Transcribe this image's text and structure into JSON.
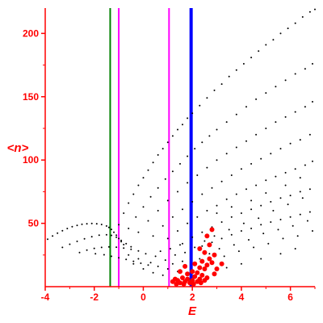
{
  "chart_data": {
    "type": "scatter",
    "title": "",
    "xlabel": "E",
    "ylabel": "<n>",
    "xlim": [
      -4,
      7
    ],
    "ylim": [
      0,
      220
    ],
    "x_ticks": [
      -4,
      -2,
      0,
      2,
      4,
      6
    ],
    "y_ticks": [
      50,
      100,
      150,
      200
    ],
    "grid": false,
    "legend": "none",
    "colors": {
      "axes": "#ff0000",
      "points_black": "#000000",
      "points_red": "#ff0000",
      "line_green": "#008000",
      "line_magenta": "#ff00ff",
      "line_blue": "#0000ff"
    },
    "vertical_lines": [
      {
        "x": -1.35,
        "color": "#008000",
        "style": "thin"
      },
      {
        "x": -1.0,
        "color": "#ff00ff",
        "style": "thin"
      },
      {
        "x": 1.05,
        "color": "#ff00ff",
        "style": "thin"
      },
      {
        "x": 1.95,
        "color": "#0000ff",
        "style": "thick"
      }
    ],
    "series": [
      {
        "values_desc": "dense band",
        "color": "#000000",
        "points": [
          [
            -3.9,
            37.5
          ],
          [
            -3.7,
            40.0
          ],
          [
            -3.5,
            42.2
          ],
          [
            -3.3,
            44.2
          ],
          [
            -3.1,
            45.9
          ],
          [
            -2.9,
            47.3
          ],
          [
            -2.7,
            48.4
          ],
          [
            -2.5,
            49.2
          ],
          [
            -2.3,
            49.7
          ],
          [
            -2.1,
            49.9
          ],
          [
            -1.9,
            49.7
          ],
          [
            -1.7,
            49.1
          ],
          [
            -1.5,
            47.9
          ],
          [
            -1.4,
            46.8
          ],
          [
            -1.3,
            45.2
          ],
          [
            -1.2,
            43.0
          ],
          [
            -1.1,
            40.6
          ],
          [
            -1.0,
            38.0
          ],
          [
            -0.9,
            35.5
          ],
          [
            -0.8,
            33.2
          ],
          [
            -3.3,
            31.0
          ],
          [
            -3.0,
            33.5
          ],
          [
            -2.7,
            35.8
          ],
          [
            -2.4,
            37.8
          ],
          [
            -2.1,
            39.5
          ],
          [
            -1.8,
            40.6
          ],
          [
            -1.5,
            41.0
          ],
          [
            -1.3,
            40.5
          ],
          [
            -1.1,
            39.0
          ],
          [
            -0.9,
            36.5
          ],
          [
            -0.7,
            34.0
          ],
          [
            -0.5,
            31.5
          ],
          [
            -2.6,
            27.0
          ],
          [
            -2.3,
            28.8
          ],
          [
            -2.0,
            30.2
          ],
          [
            -1.7,
            31.0
          ],
          [
            -1.4,
            31.4
          ],
          [
            -1.1,
            31.2
          ],
          [
            -0.8,
            30.5
          ],
          [
            -0.5,
            29.5
          ],
          [
            -0.2,
            28.2
          ],
          [
            -1.95,
            26.0
          ],
          [
            -1.6,
            25.2
          ],
          [
            -1.3,
            24.0
          ],
          [
            -1.0,
            22.8
          ],
          [
            -0.7,
            21.5
          ],
          [
            -0.4,
            20.0
          ],
          [
            -0.1,
            18.5
          ],
          [
            0.2,
            17.0
          ]
        ]
      },
      {
        "values_desc": "outer curve",
        "color": "#000000",
        "points": [
          [
            -1.0,
            49.0
          ],
          [
            -0.8,
            58.0
          ],
          [
            -0.6,
            66.0
          ],
          [
            -0.4,
            73.0
          ],
          [
            -0.2,
            80.0
          ],
          [
            0.0,
            86.0
          ],
          [
            0.2,
            92.0
          ],
          [
            0.4,
            98.0
          ],
          [
            0.6,
            104.0
          ],
          [
            0.8,
            109.0
          ],
          [
            1.0,
            114.0
          ],
          [
            1.2,
            119.0
          ],
          [
            1.4,
            124.0
          ],
          [
            1.6,
            128.0
          ],
          [
            1.8,
            133.0
          ],
          [
            2.0,
            137.0
          ],
          [
            2.3,
            143.0
          ],
          [
            2.6,
            149.0
          ],
          [
            2.9,
            155.0
          ],
          [
            3.2,
            160.0
          ],
          [
            3.5,
            166.0
          ],
          [
            3.8,
            171.0
          ],
          [
            4.1,
            176.0
          ],
          [
            4.4,
            181.0
          ],
          [
            4.7,
            186.0
          ],
          [
            5.0,
            191.0
          ],
          [
            5.3,
            195.0
          ],
          [
            5.6,
            200.0
          ],
          [
            5.9,
            204.0
          ],
          [
            6.2,
            208.0
          ],
          [
            6.5,
            213.0
          ],
          [
            6.8,
            217.0
          ],
          [
            7.0,
            219.0
          ]
        ]
      },
      {
        "values_desc": "curve 2",
        "color": "#000000",
        "points": [
          [
            -0.6,
            46.0
          ],
          [
            -0.3,
            55.0
          ],
          [
            0.0,
            63.0
          ],
          [
            0.3,
            71.0
          ],
          [
            0.6,
            78.0
          ],
          [
            0.9,
            85.0
          ],
          [
            1.2,
            91.0
          ],
          [
            1.5,
            97.0
          ],
          [
            1.8,
            103.0
          ],
          [
            2.1,
            109.0
          ],
          [
            2.4,
            114.0
          ],
          [
            2.7,
            119.0
          ],
          [
            3.0,
            124.0
          ],
          [
            3.4,
            130.0
          ],
          [
            3.8,
            136.0
          ],
          [
            4.2,
            142.0
          ],
          [
            4.6,
            148.0
          ],
          [
            5.0,
            153.0
          ],
          [
            5.4,
            158.0
          ],
          [
            5.8,
            163.0
          ],
          [
            6.2,
            168.0
          ],
          [
            6.6,
            172.0
          ],
          [
            6.9,
            176.0
          ]
        ]
      },
      {
        "values_desc": "curve 3",
        "color": "#000000",
        "points": [
          [
            -0.2,
            43.0
          ],
          [
            0.2,
            52.0
          ],
          [
            0.6,
            60.0
          ],
          [
            1.0,
            68.0
          ],
          [
            1.4,
            75.0
          ],
          [
            1.8,
            82.0
          ],
          [
            2.2,
            88.0
          ],
          [
            2.6,
            94.0
          ],
          [
            3.0,
            100.0
          ],
          [
            3.4,
            105.0
          ],
          [
            3.8,
            110.0
          ],
          [
            4.2,
            115.0
          ],
          [
            4.6,
            120.0
          ],
          [
            5.0,
            125.0
          ],
          [
            5.4,
            130.0
          ],
          [
            5.8,
            134.0
          ],
          [
            6.2,
            138.0
          ],
          [
            6.6,
            142.0
          ],
          [
            6.9,
            146.0
          ]
        ]
      },
      {
        "values_desc": "curve 4",
        "color": "#000000",
        "points": [
          [
            0.4,
            40.0
          ],
          [
            0.8,
            48.0
          ],
          [
            1.2,
            55.0
          ],
          [
            1.6,
            61.0
          ],
          [
            2.0,
            67.0
          ],
          [
            2.4,
            73.0
          ],
          [
            2.8,
            78.0
          ],
          [
            3.2,
            83.0
          ],
          [
            3.6,
            88.0
          ],
          [
            4.0,
            93.0
          ],
          [
            4.4,
            97.0
          ],
          [
            4.8,
            101.0
          ],
          [
            5.2,
            105.0
          ],
          [
            5.6,
            109.0
          ],
          [
            6.0,
            113.0
          ],
          [
            6.4,
            116.0
          ],
          [
            6.8,
            120.0
          ]
        ]
      },
      {
        "values_desc": "curve 5",
        "color": "#000000",
        "points": [
          [
            1.0,
            38.0
          ],
          [
            1.4,
            44.0
          ],
          [
            1.8,
            50.0
          ],
          [
            2.2,
            55.0
          ],
          [
            2.6,
            60.0
          ],
          [
            3.0,
            64.0
          ],
          [
            3.4,
            69.0
          ],
          [
            3.8,
            73.0
          ],
          [
            4.2,
            77.0
          ],
          [
            4.6,
            80.0
          ],
          [
            5.0,
            84.0
          ],
          [
            5.4,
            87.0
          ],
          [
            5.8,
            90.0
          ],
          [
            6.2,
            93.0
          ],
          [
            6.6,
            96.0
          ],
          [
            6.9,
            99.0
          ]
        ]
      },
      {
        "values_desc": "curve 6",
        "color": "#000000",
        "points": [
          [
            1.6,
            34.0
          ],
          [
            2.0,
            39.0
          ],
          [
            2.4,
            43.0
          ],
          [
            2.8,
            47.0
          ],
          [
            3.2,
            51.0
          ],
          [
            3.6,
            55.0
          ],
          [
            4.0,
            58.0
          ],
          [
            4.4,
            61.0
          ],
          [
            4.8,
            64.0
          ],
          [
            5.2,
            67.0
          ],
          [
            5.6,
            70.0
          ],
          [
            6.0,
            72.0
          ],
          [
            6.4,
            75.0
          ],
          [
            6.8,
            77.0
          ]
        ]
      },
      {
        "values_desc": "curve 7",
        "color": "#000000",
        "points": [
          [
            2.4,
            32.0
          ],
          [
            2.8,
            35.0
          ],
          [
            3.2,
            38.0
          ],
          [
            3.6,
            41.0
          ],
          [
            4.0,
            44.0
          ],
          [
            4.4,
            46.0
          ],
          [
            4.8,
            49.0
          ],
          [
            5.2,
            51.0
          ],
          [
            5.6,
            53.0
          ],
          [
            6.0,
            55.0
          ],
          [
            6.4,
            57.0
          ],
          [
            6.8,
            59.0
          ]
        ]
      },
      {
        "values_desc": "low scatter",
        "color": "#000000",
        "points": [
          [
            -0.6,
            25.0
          ],
          [
            -0.4,
            18.0
          ],
          [
            -0.2,
            22.0
          ],
          [
            0.0,
            14.0
          ],
          [
            0.1,
            26.0
          ],
          [
            0.3,
            19.0
          ],
          [
            0.4,
            11.0
          ],
          [
            0.5,
            24.0
          ],
          [
            0.6,
            16.0
          ],
          [
            0.7,
            28.0
          ],
          [
            0.8,
            9.0
          ],
          [
            0.9,
            21.0
          ],
          [
            1.0,
            14.0
          ],
          [
            1.1,
            30.0
          ],
          [
            1.2,
            18.0
          ],
          [
            1.3,
            25.0
          ],
          [
            1.4,
            12.0
          ],
          [
            1.5,
            33.0
          ],
          [
            1.6,
            20.0
          ],
          [
            1.7,
            27.0
          ],
          [
            2.1,
            31.0
          ],
          [
            2.3,
            22.0
          ],
          [
            2.5,
            36.0
          ],
          [
            2.7,
            26.0
          ],
          [
            2.9,
            40.0
          ],
          [
            3.1,
            30.0
          ],
          [
            3.3,
            24.0
          ],
          [
            3.5,
            45.0
          ],
          [
            3.7,
            33.0
          ],
          [
            3.9,
            28.0
          ],
          [
            4.1,
            50.0
          ],
          [
            4.3,
            37.0
          ],
          [
            4.5,
            31.0
          ],
          [
            4.7,
            54.0
          ],
          [
            4.9,
            42.0
          ],
          [
            5.1,
            34.0
          ],
          [
            5.3,
            60.0
          ],
          [
            5.5,
            45.0
          ],
          [
            5.7,
            38.0
          ],
          [
            5.9,
            65.0
          ],
          [
            6.1,
            48.0
          ],
          [
            6.3,
            40.0
          ],
          [
            6.5,
            70.0
          ],
          [
            6.7,
            52.0
          ],
          [
            6.9,
            44.0
          ],
          [
            3.0,
            58.0
          ],
          [
            3.6,
            63.0
          ],
          [
            4.4,
            68.0
          ],
          [
            5.0,
            74.0
          ],
          [
            5.8,
            80.0
          ],
          [
            6.4,
            86.0
          ],
          [
            4.0,
            18.0
          ],
          [
            4.8,
            22.0
          ],
          [
            5.6,
            26.0
          ],
          [
            6.2,
            30.0
          ],
          [
            3.4,
            15.0
          ]
        ]
      },
      {
        "values_desc": "red points",
        "color": "#ff0000",
        "points": [
          [
            1.2,
            4.0
          ],
          [
            1.3,
            6.0
          ],
          [
            1.4,
            5.0
          ],
          [
            1.5,
            3.0
          ],
          [
            1.6,
            7.0
          ],
          [
            1.7,
            4.0
          ],
          [
            1.8,
            6.0
          ],
          [
            1.9,
            3.0
          ],
          [
            2.0,
            5.0
          ],
          [
            2.1,
            8.0
          ],
          [
            2.2,
            4.0
          ],
          [
            2.3,
            6.0
          ],
          [
            2.4,
            9.0
          ],
          [
            2.5,
            5.0
          ],
          [
            2.6,
            7.0
          ],
          [
            1.35,
            2.0
          ],
          [
            1.65,
            2.0
          ],
          [
            2.05,
            2.0
          ],
          [
            2.35,
            3.0
          ],
          [
            1.8,
            10.0
          ],
          [
            2.0,
            12.0
          ],
          [
            2.2,
            11.0
          ],
          [
            2.3,
            15.0
          ],
          [
            2.5,
            14.0
          ],
          [
            2.1,
            18.0
          ],
          [
            2.4,
            20.0
          ],
          [
            2.6,
            17.0
          ],
          [
            2.7,
            22.0
          ],
          [
            2.8,
            19.0
          ],
          [
            2.9,
            25.0
          ],
          [
            2.5,
            27.0
          ],
          [
            2.3,
            30.0
          ],
          [
            2.7,
            33.0
          ],
          [
            2.6,
            40.0
          ],
          [
            2.8,
            45.0
          ],
          [
            3.0,
            14.0
          ],
          [
            3.2,
            18.0
          ],
          [
            2.9,
            10.0
          ],
          [
            1.5,
            12.0
          ],
          [
            1.7,
            16.0
          ]
        ]
      }
    ]
  }
}
